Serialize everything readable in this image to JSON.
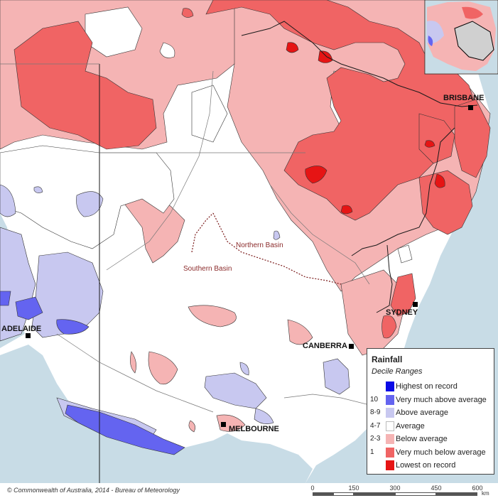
{
  "map": {
    "cities": [
      {
        "id": "brisbane",
        "label": "BRISBANE"
      },
      {
        "id": "sydney",
        "label": "SYDNEY"
      },
      {
        "id": "canberra",
        "label": "CANBERRA"
      },
      {
        "id": "adelaide",
        "label": "ADELAIDE"
      },
      {
        "id": "melbourne",
        "label": "MELBOURNE"
      }
    ],
    "basins": {
      "north": "Northern Basin",
      "south": "Southern Basin"
    }
  },
  "legend": {
    "title": "Rainfall",
    "subtitle": "Decile Ranges",
    "items": [
      {
        "code": "",
        "label": "Highest on record",
        "color": "#0a0ae6"
      },
      {
        "code": "10",
        "label": "Very much above average",
        "color": "#6464f0"
      },
      {
        "code": "8-9",
        "label": "Above average",
        "color": "#c8c8f0"
      },
      {
        "code": "4-7",
        "label": "Average",
        "color": "#ffffff"
      },
      {
        "code": "2-3",
        "label": "Below average",
        "color": "#f5b4b4"
      },
      {
        "code": "1",
        "label": "Very much below average",
        "color": "#f06464"
      },
      {
        "code": "",
        "label": "Lowest on record",
        "color": "#e61414"
      }
    ]
  },
  "footer": {
    "copyright": "© Commonwealth of Australia, 2014 - Bureau of Meteorology",
    "scale": [
      "0",
      "150",
      "300",
      "450",
      "600"
    ],
    "unit": "km"
  },
  "colors": {
    "sea": "#c8dce6",
    "border": "#1a1a1a"
  }
}
